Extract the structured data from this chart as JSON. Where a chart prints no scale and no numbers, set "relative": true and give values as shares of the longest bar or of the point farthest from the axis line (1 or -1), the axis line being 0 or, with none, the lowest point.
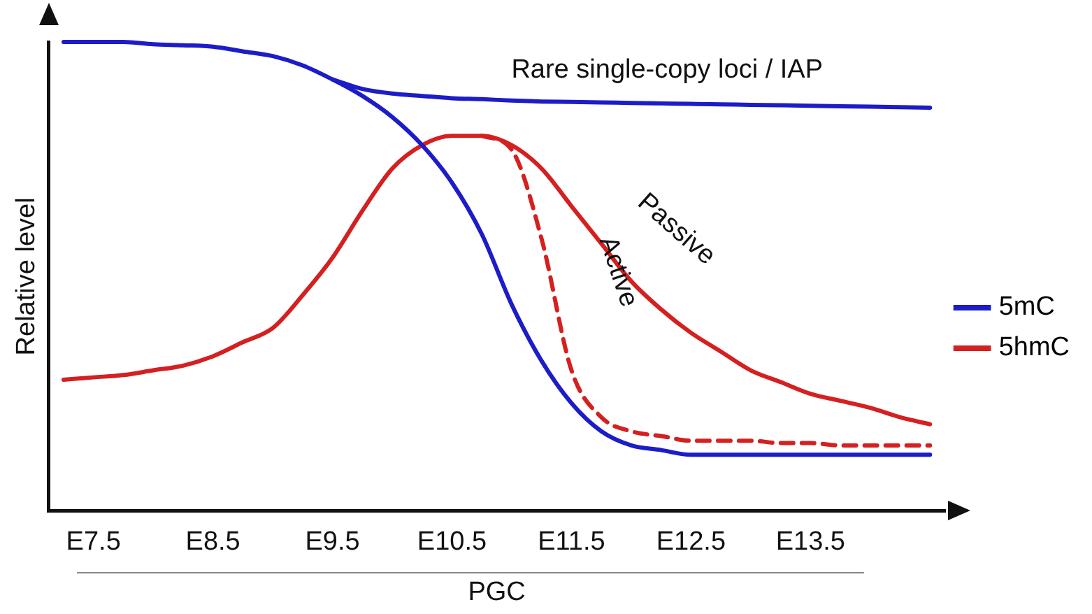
{
  "chart_data": {
    "type": "line",
    "relative": true,
    "xlabel": "PGC",
    "ylabel": "Relative level",
    "legend": "right",
    "grid": false,
    "marker": "none",
    "categories": [
      null,
      "E7.5",
      null,
      null,
      null,
      "E8.5",
      null,
      null,
      null,
      "E9.5",
      null,
      null,
      null,
      "E10.5",
      null,
      null,
      null,
      "E11.5",
      null,
      null,
      null,
      "E12.5",
      null,
      null,
      null,
      "E13.5",
      null,
      null,
      null,
      null
    ],
    "series": [
      {
        "name": "5mC",
        "color": "#1c1cc8",
        "line_style": "solid",
        "values": [
          1.0,
          1.0,
          1.0,
          0.995,
          0.993,
          0.99,
          0.98,
          0.97,
          0.95,
          0.92,
          0.885,
          0.84,
          0.78,
          0.7,
          0.59,
          0.44,
          0.32,
          0.23,
          0.17,
          0.14,
          0.13,
          0.12,
          0.12,
          0.12,
          0.12,
          0.12,
          0.12,
          0.12,
          0.12,
          0.12
        ]
      },
      {
        "name": "5hmC",
        "color": "#d42020",
        "line_style": "solid",
        "values": [
          0.28,
          0.285,
          0.29,
          0.3,
          0.31,
          0.33,
          0.36,
          0.39,
          0.46,
          0.54,
          0.64,
          0.73,
          0.78,
          0.8,
          0.8,
          0.78,
          0.73,
          0.65,
          0.57,
          0.49,
          0.43,
          0.38,
          0.34,
          0.3,
          0.275,
          0.25,
          0.235,
          0.22,
          0.2,
          0.185
        ]
      },
      {
        "color": "#1c1cc8",
        "line_style": "solid",
        "values": [
          null,
          null,
          null,
          null,
          null,
          null,
          null,
          null,
          null,
          0.92,
          0.9,
          0.89,
          0.885,
          0.88,
          0.878,
          0.875,
          0.873,
          0.872,
          0.871,
          0.87,
          0.869,
          0.868,
          0.867,
          0.866,
          0.865,
          0.864,
          0.863,
          0.862,
          0.861,
          0.86
        ]
      },
      {
        "color": "#d42020",
        "line_style": "dashed",
        "values": [
          null,
          null,
          null,
          null,
          null,
          null,
          null,
          null,
          null,
          null,
          null,
          null,
          null,
          null,
          0.8,
          0.77,
          0.58,
          0.3,
          0.2,
          0.17,
          0.16,
          0.15,
          0.15,
          0.15,
          0.145,
          0.145,
          0.14,
          0.14,
          0.14,
          0.14
        ]
      }
    ],
    "annotations": [
      "Rare single-copy loci / IAP",
      "Passive",
      "Active"
    ]
  }
}
